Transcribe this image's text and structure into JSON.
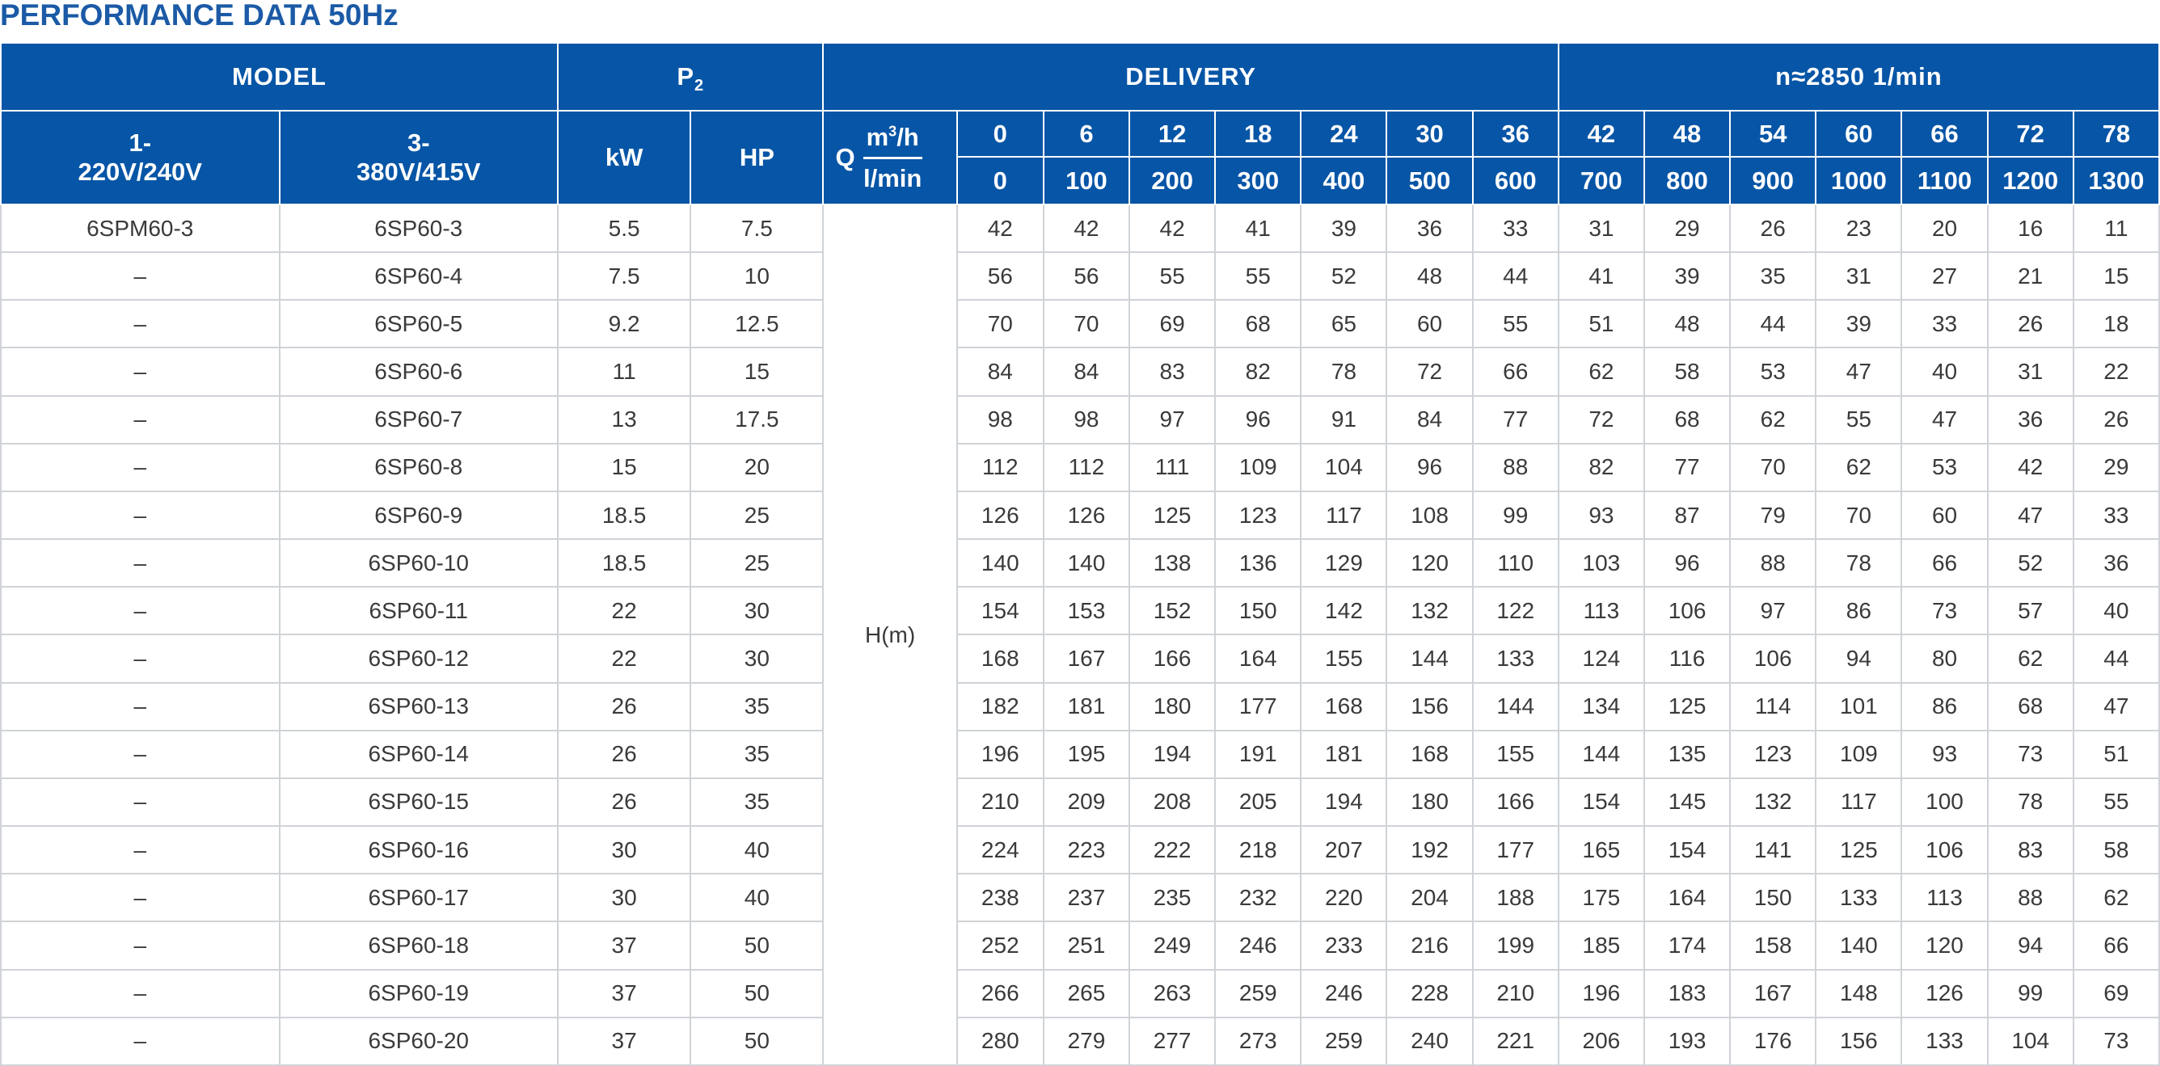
{
  "title": "PERFORMANCE DATA 50Hz",
  "header": {
    "model": "MODEL",
    "p2": "P",
    "p2_sub": "2",
    "delivery": "DELIVERY",
    "speed": "n≈2850  1/min",
    "col_1ph": "1-\n220V/240V",
    "col_3ph": "3-\n380V/415V",
    "kw": "kW",
    "hp": "HP",
    "q_letter": "Q",
    "q_unit_m3h": "m",
    "q_unit_m3h_sup": "3",
    "q_unit_m3h_tail": "/h",
    "q_unit_lmin": "l/min",
    "h_label": "H(m)"
  },
  "flow_m3h": [
    "0",
    "6",
    "12",
    "18",
    "24",
    "30",
    "36",
    "42",
    "48",
    "54",
    "60",
    "66",
    "72",
    "78"
  ],
  "flow_lmin": [
    "0",
    "100",
    "200",
    "300",
    "400",
    "500",
    "600",
    "700",
    "800",
    "900",
    "1000",
    "1100",
    "1200",
    "1300"
  ],
  "rows": [
    {
      "m1": "6SPM60-3",
      "m3": "6SP60-3",
      "kw": "5.5",
      "hp": "7.5",
      "h": [
        "42",
        "42",
        "42",
        "41",
        "39",
        "36",
        "33",
        "31",
        "29",
        "26",
        "23",
        "20",
        "16",
        "11"
      ]
    },
    {
      "m1": "–",
      "m3": "6SP60-4",
      "kw": "7.5",
      "hp": "10",
      "h": [
        "56",
        "56",
        "55",
        "55",
        "52",
        "48",
        "44",
        "41",
        "39",
        "35",
        "31",
        "27",
        "21",
        "15"
      ]
    },
    {
      "m1": "–",
      "m3": "6SP60-5",
      "kw": "9.2",
      "hp": "12.5",
      "h": [
        "70",
        "70",
        "69",
        "68",
        "65",
        "60",
        "55",
        "51",
        "48",
        "44",
        "39",
        "33",
        "26",
        "18"
      ]
    },
    {
      "m1": "–",
      "m3": "6SP60-6",
      "kw": "11",
      "hp": "15",
      "h": [
        "84",
        "84",
        "83",
        "82",
        "78",
        "72",
        "66",
        "62",
        "58",
        "53",
        "47",
        "40",
        "31",
        "22"
      ]
    },
    {
      "m1": "–",
      "m3": "6SP60-7",
      "kw": "13",
      "hp": "17.5",
      "h": [
        "98",
        "98",
        "97",
        "96",
        "91",
        "84",
        "77",
        "72",
        "68",
        "62",
        "55",
        "47",
        "36",
        "26"
      ]
    },
    {
      "m1": "–",
      "m3": "6SP60-8",
      "kw": "15",
      "hp": "20",
      "h": [
        "112",
        "112",
        "111",
        "109",
        "104",
        "96",
        "88",
        "82",
        "77",
        "70",
        "62",
        "53",
        "42",
        "29"
      ]
    },
    {
      "m1": "–",
      "m3": "6SP60-9",
      "kw": "18.5",
      "hp": "25",
      "h": [
        "126",
        "126",
        "125",
        "123",
        "117",
        "108",
        "99",
        "93",
        "87",
        "79",
        "70",
        "60",
        "47",
        "33"
      ]
    },
    {
      "m1": "–",
      "m3": "6SP60-10",
      "kw": "18.5",
      "hp": "25",
      "h": [
        "140",
        "140",
        "138",
        "136",
        "129",
        "120",
        "110",
        "103",
        "96",
        "88",
        "78",
        "66",
        "52",
        "36"
      ]
    },
    {
      "m1": "–",
      "m3": "6SP60-11",
      "kw": "22",
      "hp": "30",
      "h": [
        "154",
        "153",
        "152",
        "150",
        "142",
        "132",
        "122",
        "113",
        "106",
        "97",
        "86",
        "73",
        "57",
        "40"
      ]
    },
    {
      "m1": "–",
      "m3": "6SP60-12",
      "kw": "22",
      "hp": "30",
      "h": [
        "168",
        "167",
        "166",
        "164",
        "155",
        "144",
        "133",
        "124",
        "116",
        "106",
        "94",
        "80",
        "62",
        "44"
      ]
    },
    {
      "m1": "–",
      "m3": "6SP60-13",
      "kw": "26",
      "hp": "35",
      "h": [
        "182",
        "181",
        "180",
        "177",
        "168",
        "156",
        "144",
        "134",
        "125",
        "114",
        "101",
        "86",
        "68",
        "47"
      ]
    },
    {
      "m1": "–",
      "m3": "6SP60-14",
      "kw": "26",
      "hp": "35",
      "h": [
        "196",
        "195",
        "194",
        "191",
        "181",
        "168",
        "155",
        "144",
        "135",
        "123",
        "109",
        "93",
        "73",
        "51"
      ]
    },
    {
      "m1": "–",
      "m3": "6SP60-15",
      "kw": "26",
      "hp": "35",
      "h": [
        "210",
        "209",
        "208",
        "205",
        "194",
        "180",
        "166",
        "154",
        "145",
        "132",
        "117",
        "100",
        "78",
        "55"
      ]
    },
    {
      "m1": "–",
      "m3": "6SP60-16",
      "kw": "30",
      "hp": "40",
      "h": [
        "224",
        "223",
        "222",
        "218",
        "207",
        "192",
        "177",
        "165",
        "154",
        "141",
        "125",
        "106",
        "83",
        "58"
      ]
    },
    {
      "m1": "–",
      "m3": "6SP60-17",
      "kw": "30",
      "hp": "40",
      "h": [
        "238",
        "237",
        "235",
        "232",
        "220",
        "204",
        "188",
        "175",
        "164",
        "150",
        "133",
        "113",
        "88",
        "62"
      ]
    },
    {
      "m1": "–",
      "m3": "6SP60-18",
      "kw": "37",
      "hp": "50",
      "h": [
        "252",
        "251",
        "249",
        "246",
        "233",
        "216",
        "199",
        "185",
        "174",
        "158",
        "140",
        "120",
        "94",
        "66"
      ]
    },
    {
      "m1": "–",
      "m3": "6SP60-19",
      "kw": "37",
      "hp": "50",
      "h": [
        "266",
        "265",
        "263",
        "259",
        "246",
        "228",
        "210",
        "196",
        "183",
        "167",
        "148",
        "126",
        "99",
        "69"
      ]
    },
    {
      "m1": "–",
      "m3": "6SP60-20",
      "kw": "37",
      "hp": "50",
      "h": [
        "280",
        "279",
        "277",
        "273",
        "259",
        "240",
        "221",
        "206",
        "193",
        "176",
        "156",
        "133",
        "104",
        "73"
      ]
    }
  ]
}
